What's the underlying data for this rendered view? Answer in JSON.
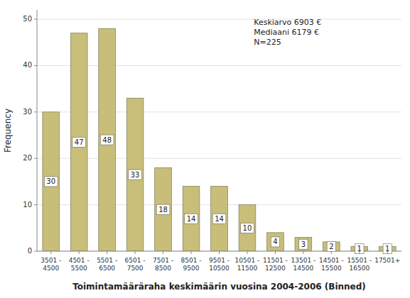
{
  "chart_data": {
    "type": "bar",
    "categories": [
      "3501 -\n4500",
      "4501 -\n5500",
      "5501 -\n6500",
      "6501 -\n7500",
      "7501 -\n8500",
      "8501 -\n9500",
      "9501 -\n10500",
      "10501 -\n11500",
      "11501 -\n12500",
      "13501 -\n14500",
      "14501 -\n15500",
      "15501 -\n16500",
      "17501+"
    ],
    "values": [
      30,
      47,
      48,
      33,
      18,
      14,
      14,
      10,
      4,
      3,
      2,
      1,
      1
    ],
    "color": "#C8BE7A",
    "xlabel": "Toimintamääräraha keskimäärin vuosina 2004-2006 (Binned)",
    "ylabel": "Frequency",
    "annotation": "Keskiarvo 6903 €\nMediaani 6179 €\nN=225",
    "ylim": [
      0,
      52
    ],
    "yticks": [
      0,
      10,
      20,
      30,
      40,
      50
    ],
    "grid": true,
    "data_labels": true
  }
}
